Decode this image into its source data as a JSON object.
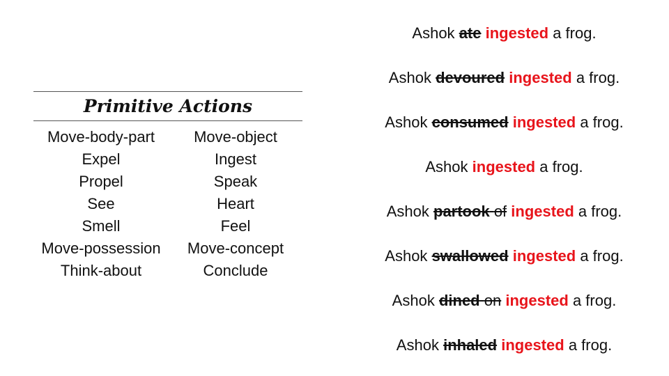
{
  "table": {
    "title": "Primitive Actions",
    "left_column": [
      "Move-body-part",
      "Expel",
      "Propel",
      "See",
      "Smell",
      "Move-possession",
      "Think-about"
    ],
    "right_column": [
      "Move-object",
      "Ingest",
      "Speak",
      "Heart",
      "Feel",
      "Move-concept",
      "Conclude"
    ]
  },
  "sentences": [
    {
      "subject": "Ashok",
      "struck": "ate",
      "struck_extra": "",
      "replacement": "ingested",
      "rest": "a frog."
    },
    {
      "subject": "Ashok",
      "struck": "devoured",
      "struck_extra": "",
      "replacement": "ingested",
      "rest": "a frog."
    },
    {
      "subject": "Ashok",
      "struck": "consumed",
      "struck_extra": "",
      "replacement": "ingested",
      "rest": "a frog."
    },
    {
      "subject": "Ashok",
      "struck": "",
      "struck_extra": "",
      "replacement": "ingested",
      "rest": "a frog."
    },
    {
      "subject": "Ashok",
      "struck": "partook",
      "struck_extra": "of",
      "replacement": "ingested",
      "rest": "a frog."
    },
    {
      "subject": "Ashok",
      "struck": "swallowed",
      "struck_extra": "",
      "replacement": "ingested",
      "rest": "a frog."
    },
    {
      "subject": "Ashok",
      "struck": "dined",
      "struck_extra": "on",
      "replacement": "ingested",
      "rest": "a frog."
    },
    {
      "subject": "Ashok",
      "struck": "inhaled",
      "struck_extra": "",
      "replacement": "ingested",
      "rest": "a frog."
    }
  ],
  "colors": {
    "replacement": "#e8141b",
    "text": "#111111",
    "rule": "#555555"
  }
}
